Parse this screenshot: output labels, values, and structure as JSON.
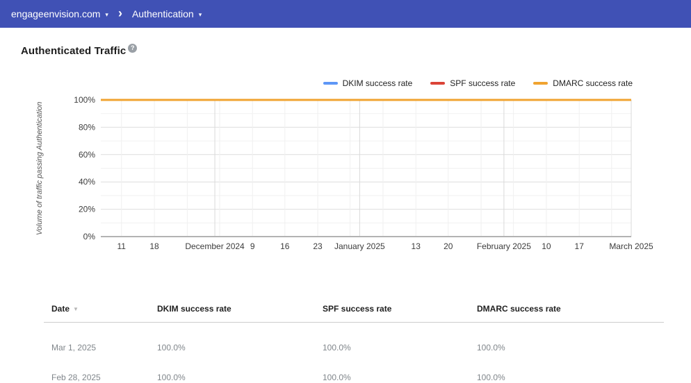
{
  "header": {
    "domain": "engageenvision.com",
    "section": "Authentication",
    "caret": "▾",
    "chevron": "›"
  },
  "page": {
    "title": "Authenticated Traffic",
    "help_glyph": "?"
  },
  "chart_data": {
    "type": "line",
    "title": "Authenticated Traffic",
    "xlabel": "",
    "ylabel": "Volume of traffic passing Authentication",
    "ylim": [
      0,
      100
    ],
    "grid": true,
    "legend_position": "top-right",
    "y_ticks": [
      {
        "value": 0,
        "label": "0%"
      },
      {
        "value": 20,
        "label": "20%"
      },
      {
        "value": 40,
        "label": "40%"
      },
      {
        "value": 60,
        "label": "60%"
      },
      {
        "value": 80,
        "label": "80%"
      },
      {
        "value": 100,
        "label": "100%"
      }
    ],
    "y_minor_step": 10,
    "x_ticks": [
      {
        "pos": 0.039,
        "label": "11"
      },
      {
        "pos": 0.101,
        "label": "18"
      },
      {
        "pos": 0.215,
        "label": "December 2024"
      },
      {
        "pos": 0.286,
        "label": "9"
      },
      {
        "pos": 0.347,
        "label": "16"
      },
      {
        "pos": 0.409,
        "label": "23"
      },
      {
        "pos": 0.488,
        "label": "January 2025"
      },
      {
        "pos": 0.594,
        "label": "13"
      },
      {
        "pos": 0.655,
        "label": "20"
      },
      {
        "pos": 0.76,
        "label": "February 2025"
      },
      {
        "pos": 0.84,
        "label": "10"
      },
      {
        "pos": 0.902,
        "label": "17"
      },
      {
        "pos": 1.0,
        "label": "March 2025"
      }
    ],
    "week_gridlines": [
      0.039,
      0.101,
      0.163,
      0.224,
      0.286,
      0.347,
      0.409,
      0.47,
      0.532,
      0.594,
      0.655,
      0.717,
      0.778,
      0.84,
      0.902,
      0.963
    ],
    "month_gridlines": [
      0.215,
      0.488,
      0.76,
      1.0
    ],
    "series": [
      {
        "name": "DKIM success rate",
        "color": "#5e97f6",
        "x": [
          0,
          1
        ],
        "values": [
          100,
          100
        ]
      },
      {
        "name": "SPF success rate",
        "color": "#db4437",
        "x": [
          0,
          1
        ],
        "values": [
          100,
          100
        ]
      },
      {
        "name": "DMARC success rate",
        "color": "#f0a330",
        "x": [
          0,
          1
        ],
        "values": [
          100,
          100
        ]
      }
    ]
  },
  "table": {
    "columns": [
      "Date",
      "DKIM success rate",
      "SPF success rate",
      "DMARC success rate"
    ],
    "sorted_column": "Date",
    "sort_icon": "▼",
    "rows": [
      [
        "Mar 1, 2025",
        "100.0%",
        "100.0%",
        "100.0%"
      ],
      [
        "Feb 28, 2025",
        "100.0%",
        "100.0%",
        "100.0%"
      ]
    ]
  }
}
